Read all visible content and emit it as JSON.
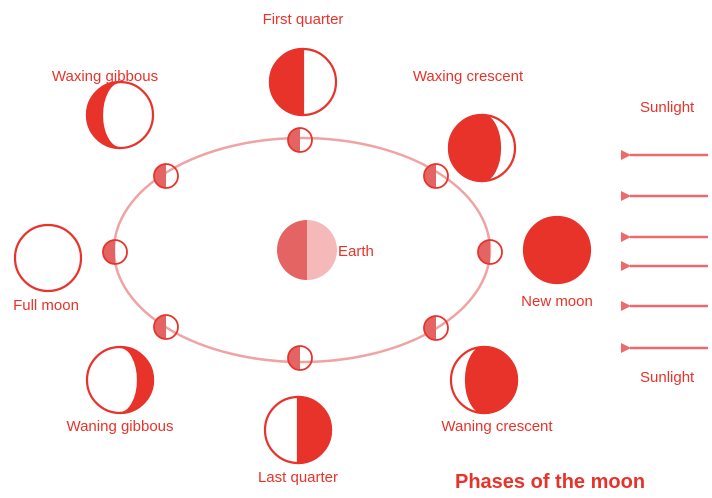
{
  "title": "Phases of the moon",
  "earth": "Earth",
  "sunlight": [
    "Sunlight",
    "Sunlight"
  ],
  "phases": [
    "First quarter",
    "Waxing crescent",
    "New moon",
    "Waning crescent",
    "Last quarter",
    "Waning gibbous",
    "Full moon",
    "Waxing gibbous"
  ]
}
